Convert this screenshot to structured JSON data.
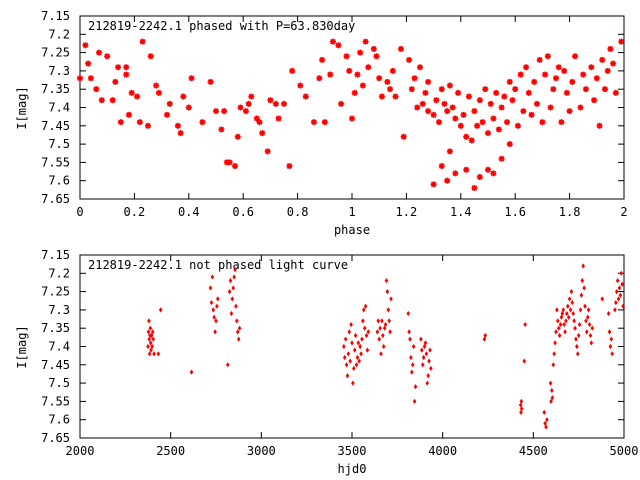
{
  "chart_data": [
    {
      "type": "scatter",
      "title": "212819-2242.1 phased with P=63.830day",
      "xlabel": "phase",
      "ylabel": "I[mag]",
      "xlim": [
        0,
        2
      ],
      "ylim": [
        7.65,
        7.15
      ],
      "y_inverted": true,
      "xticks": [
        "0",
        "0.2",
        "0.4",
        "0.6",
        "0.8",
        "1",
        "1.2",
        "1.4",
        "1.6",
        "1.8",
        "2"
      ],
      "yticks": [
        "7.15",
        "7.2",
        "7.25",
        "7.3",
        "7.35",
        "7.4",
        "7.45",
        "7.5",
        "7.55",
        "7.6",
        "7.65"
      ],
      "grid": false,
      "marker": "star",
      "color": "#ff0000",
      "points": [
        [
          0.0,
          7.32
        ],
        [
          0.02,
          7.23
        ],
        [
          0.03,
          7.28
        ],
        [
          0.04,
          7.32
        ],
        [
          0.06,
          7.35
        ],
        [
          0.07,
          7.25
        ],
        [
          0.08,
          7.38
        ],
        [
          0.1,
          7.26
        ],
        [
          0.12,
          7.38
        ],
        [
          0.13,
          7.33
        ],
        [
          0.14,
          7.29
        ],
        [
          0.15,
          7.44
        ],
        [
          0.17,
          7.29
        ],
        [
          0.17,
          7.31
        ],
        [
          0.18,
          7.42
        ],
        [
          0.19,
          7.36
        ],
        [
          0.21,
          7.37
        ],
        [
          0.22,
          7.44
        ],
        [
          0.23,
          7.22
        ],
        [
          0.25,
          7.45
        ],
        [
          0.26,
          7.26
        ],
        [
          0.28,
          7.34
        ],
        [
          0.29,
          7.36
        ],
        [
          0.32,
          7.42
        ],
        [
          0.33,
          7.39
        ],
        [
          0.36,
          7.45
        ],
        [
          0.37,
          7.47
        ],
        [
          0.38,
          7.37
        ],
        [
          0.4,
          7.4
        ],
        [
          0.41,
          7.32
        ],
        [
          0.45,
          7.44
        ],
        [
          0.48,
          7.33
        ],
        [
          0.5,
          7.41
        ],
        [
          0.52,
          7.46
        ],
        [
          0.53,
          7.41
        ],
        [
          0.54,
          7.55
        ],
        [
          0.55,
          7.55
        ],
        [
          0.57,
          7.56
        ],
        [
          0.58,
          7.48
        ],
        [
          0.59,
          7.4
        ],
        [
          0.61,
          7.41
        ],
        [
          0.62,
          7.39
        ],
        [
          0.63,
          7.37
        ],
        [
          0.65,
          7.43
        ],
        [
          0.66,
          7.44
        ],
        [
          0.67,
          7.47
        ],
        [
          0.69,
          7.52
        ],
        [
          0.7,
          7.38
        ],
        [
          0.72,
          7.39
        ],
        [
          0.73,
          7.43
        ],
        [
          0.75,
          7.39
        ],
        [
          0.77,
          7.56
        ],
        [
          0.78,
          7.3
        ],
        [
          0.81,
          7.34
        ],
        [
          0.83,
          7.37
        ],
        [
          0.86,
          7.44
        ],
        [
          0.88,
          7.32
        ],
        [
          0.89,
          7.27
        ],
        [
          0.9,
          7.44
        ],
        [
          0.92,
          7.31
        ],
        [
          0.93,
          7.22
        ],
        [
          0.95,
          7.23
        ],
        [
          0.96,
          7.39
        ],
        [
          0.98,
          7.26
        ],
        [
          0.99,
          7.3
        ],
        [
          1.0,
          7.43
        ],
        [
          1.01,
          7.36
        ],
        [
          1.02,
          7.31
        ],
        [
          1.03,
          7.25
        ],
        [
          1.04,
          7.34
        ],
        [
          1.05,
          7.22
        ],
        [
          1.06,
          7.29
        ],
        [
          1.08,
          7.24
        ],
        [
          1.09,
          7.26
        ],
        [
          1.1,
          7.32
        ],
        [
          1.11,
          7.37
        ],
        [
          1.13,
          7.33
        ],
        [
          1.14,
          7.35
        ],
        [
          1.15,
          7.3
        ],
        [
          1.16,
          7.37
        ],
        [
          1.18,
          7.24
        ],
        [
          1.19,
          7.48
        ],
        [
          1.21,
          7.27
        ],
        [
          1.22,
          7.35
        ],
        [
          1.23,
          7.32
        ],
        [
          1.24,
          7.4
        ],
        [
          1.25,
          7.29
        ],
        [
          1.27,
          7.36
        ],
        [
          1.28,
          7.33
        ],
        [
          1.3,
          7.42
        ],
        [
          1.31,
          7.38
        ],
        [
          1.32,
          7.44
        ],
        [
          1.33,
          7.35
        ],
        [
          1.34,
          7.39
        ],
        [
          1.35,
          7.41
        ],
        [
          1.36,
          7.34
        ],
        [
          1.37,
          7.4
        ],
        [
          1.38,
          7.43
        ],
        [
          1.39,
          7.36
        ],
        [
          1.4,
          7.45
        ],
        [
          1.41,
          7.42
        ],
        [
          1.42,
          7.48
        ],
        [
          1.43,
          7.37
        ],
        [
          1.44,
          7.49
        ],
        [
          1.45,
          7.41
        ],
        [
          1.46,
          7.45
        ],
        [
          1.47,
          7.38
        ],
        [
          1.48,
          7.44
        ],
        [
          1.49,
          7.35
        ],
        [
          1.5,
          7.47
        ],
        [
          1.51,
          7.39
        ],
        [
          1.52,
          7.43
        ],
        [
          1.53,
          7.36
        ],
        [
          1.54,
          7.46
        ],
        [
          1.55,
          7.4
        ],
        [
          1.56,
          7.37
        ],
        [
          1.57,
          7.44
        ],
        [
          1.58,
          7.33
        ],
        [
          1.59,
          7.38
        ],
        [
          1.6,
          7.35
        ],
        [
          1.61,
          7.45
        ],
        [
          1.62,
          7.31
        ],
        [
          1.63,
          7.41
        ],
        [
          1.64,
          7.29
        ],
        [
          1.65,
          7.36
        ],
        [
          1.66,
          7.42
        ],
        [
          1.67,
          7.33
        ],
        [
          1.68,
          7.39
        ],
        [
          1.69,
          7.27
        ],
        [
          1.7,
          7.44
        ],
        [
          1.71,
          7.31
        ],
        [
          1.72,
          7.26
        ],
        [
          1.73,
          7.4
        ],
        [
          1.74,
          7.35
        ],
        [
          1.75,
          7.32
        ],
        [
          1.76,
          7.29
        ],
        [
          1.77,
          7.44
        ],
        [
          1.78,
          7.3
        ],
        [
          1.79,
          7.36
        ],
        [
          1.8,
          7.41
        ],
        [
          1.81,
          7.33
        ],
        [
          1.82,
          7.26
        ],
        [
          1.84,
          7.4
        ],
        [
          1.85,
          7.31
        ],
        [
          1.86,
          7.35
        ],
        [
          1.88,
          7.29
        ],
        [
          1.89,
          7.38
        ],
        [
          1.9,
          7.32
        ],
        [
          1.91,
          7.45
        ],
        [
          1.92,
          7.27
        ],
        [
          1.93,
          7.35
        ],
        [
          1.94,
          7.3
        ],
        [
          1.95,
          7.24
        ],
        [
          1.96,
          7.28
        ],
        [
          1.97,
          7.36
        ],
        [
          1.99,
          7.22
        ],
        [
          1.3,
          7.61
        ],
        [
          1.33,
          7.56
        ],
        [
          1.35,
          7.6
        ],
        [
          1.38,
          7.58
        ],
        [
          1.42,
          7.57
        ],
        [
          1.45,
          7.62
        ],
        [
          1.47,
          7.59
        ],
        [
          1.5,
          7.57
        ],
        [
          1.52,
          7.58
        ],
        [
          1.55,
          7.54
        ],
        [
          1.58,
          7.5
        ],
        [
          1.36,
          7.52
        ],
        [
          1.28,
          7.41
        ],
        [
          1.26,
          7.39
        ]
      ]
    },
    {
      "type": "scatter",
      "title": "212819-2242.1 not phased light curve",
      "xlabel": "hjd0",
      "ylabel": "I[mag]",
      "xlim": [
        2000,
        5000
      ],
      "ylim": [
        7.65,
        7.15
      ],
      "y_inverted": true,
      "xticks": [
        "2000",
        "2500",
        "3000",
        "3500",
        "4000",
        "4500",
        "5000"
      ],
      "yticks": [
        "7.15",
        "7.2",
        "7.25",
        "7.3",
        "7.35",
        "7.4",
        "7.45",
        "7.5",
        "7.55",
        "7.6",
        "7.65"
      ],
      "grid": false,
      "marker": "diamond",
      "color": "#ff0000",
      "points": [
        [
          2375,
          7.4
        ],
        [
          2378,
          7.36
        ],
        [
          2380,
          7.33
        ],
        [
          2382,
          7.38
        ],
        [
          2384,
          7.42
        ],
        [
          2386,
          7.37
        ],
        [
          2388,
          7.35
        ],
        [
          2390,
          7.39
        ],
        [
          2392,
          7.41
        ],
        [
          2395,
          7.37
        ],
        [
          2398,
          7.4
        ],
        [
          2401,
          7.36
        ],
        [
          2404,
          7.38
        ],
        [
          2408,
          7.42
        ],
        [
          2432,
          7.42
        ],
        [
          2445,
          7.3
        ],
        [
          2615,
          7.47
        ],
        [
          2720,
          7.24
        ],
        [
          2725,
          7.28
        ],
        [
          2730,
          7.21
        ],
        [
          2735,
          7.3
        ],
        [
          2740,
          7.32
        ],
        [
          2745,
          7.36
        ],
        [
          2750,
          7.33
        ],
        [
          2755,
          7.29
        ],
        [
          2760,
          7.27
        ],
        [
          2815,
          7.45
        ],
        [
          2825,
          7.25
        ],
        [
          2830,
          7.22
        ],
        [
          2835,
          7.31
        ],
        [
          2840,
          7.27
        ],
        [
          2845,
          7.24
        ],
        [
          2850,
          7.21
        ],
        [
          2855,
          7.19
        ],
        [
          2860,
          7.29
        ],
        [
          2865,
          7.33
        ],
        [
          2870,
          7.36
        ],
        [
          2875,
          7.38
        ],
        [
          2880,
          7.35
        ],
        [
          3455,
          7.4
        ],
        [
          3460,
          7.43
        ],
        [
          3465,
          7.38
        ],
        [
          3470,
          7.45
        ],
        [
          3475,
          7.48
        ],
        [
          3480,
          7.42
        ],
        [
          3485,
          7.36
        ],
        [
          3490,
          7.44
        ],
        [
          3495,
          7.34
        ],
        [
          3500,
          7.39
        ],
        [
          3505,
          7.5
        ],
        [
          3510,
          7.46
        ],
        [
          3515,
          7.41
        ],
        [
          3520,
          7.37
        ],
        [
          3525,
          7.45
        ],
        [
          3530,
          7.43
        ],
        [
          3535,
          7.39
        ],
        [
          3540,
          7.44
        ],
        [
          3545,
          7.4
        ],
        [
          3550,
          7.42
        ],
        [
          3555,
          7.38
        ],
        [
          3560,
          7.33
        ],
        [
          3565,
          7.3
        ],
        [
          3570,
          7.35
        ],
        [
          3575,
          7.29
        ],
        [
          3580,
          7.37
        ],
        [
          3585,
          7.41
        ],
        [
          3590,
          7.36
        ],
        [
          3640,
          7.36
        ],
        [
          3645,
          7.33
        ],
        [
          3650,
          7.38
        ],
        [
          3655,
          7.35
        ],
        [
          3660,
          7.42
        ],
        [
          3665,
          7.33
        ],
        [
          3670,
          7.37
        ],
        [
          3675,
          7.4
        ],
        [
          3680,
          7.35
        ],
        [
          3685,
          7.34
        ],
        [
          3690,
          7.22
        ],
        [
          3695,
          7.25
        ],
        [
          3700,
          7.3
        ],
        [
          3705,
          7.33
        ],
        [
          3710,
          7.36
        ],
        [
          3715,
          7.27
        ],
        [
          3810,
          7.31
        ],
        [
          3815,
          7.36
        ],
        [
          3820,
          7.38
        ],
        [
          3825,
          7.43
        ],
        [
          3830,
          7.47
        ],
        [
          3835,
          7.45
        ],
        [
          3840,
          7.4
        ],
        [
          3845,
          7.55
        ],
        [
          3850,
          7.51
        ],
        [
          3880,
          7.38
        ],
        [
          3885,
          7.41
        ],
        [
          3890,
          7.45
        ],
        [
          3895,
          7.43
        ],
        [
          3900,
          7.4
        ],
        [
          3905,
          7.39
        ],
        [
          3910,
          7.42
        ],
        [
          3915,
          7.5
        ],
        [
          3920,
          7.48
        ],
        [
          3925,
          7.44
        ],
        [
          3930,
          7.41
        ],
        [
          3935,
          7.46
        ],
        [
          4230,
          7.38
        ],
        [
          4235,
          7.37
        ],
        [
          4430,
          7.56
        ],
        [
          4432,
          7.58
        ],
        [
          4434,
          7.55
        ],
        [
          4436,
          7.57
        ],
        [
          4450,
          7.44
        ],
        [
          4455,
          7.34
        ],
        [
          4560,
          7.58
        ],
        [
          4565,
          7.61
        ],
        [
          4570,
          7.62
        ],
        [
          4575,
          7.6
        ],
        [
          4595,
          7.5
        ],
        [
          4598,
          7.55
        ],
        [
          4602,
          7.52
        ],
        [
          4605,
          7.54
        ],
        [
          4610,
          7.45
        ],
        [
          4615,
          7.42
        ],
        [
          4620,
          7.39
        ],
        [
          4625,
          7.36
        ],
        [
          4630,
          7.3
        ],
        [
          4635,
          7.33
        ],
        [
          4640,
          7.35
        ],
        [
          4645,
          7.37
        ],
        [
          4650,
          7.34
        ],
        [
          4655,
          7.32
        ],
        [
          4660,
          7.31
        ],
        [
          4665,
          7.3
        ],
        [
          4670,
          7.34
        ],
        [
          4675,
          7.36
        ],
        [
          4680,
          7.33
        ],
        [
          4685,
          7.31
        ],
        [
          4690,
          7.29
        ],
        [
          4695,
          7.32
        ],
        [
          4700,
          7.27
        ],
        [
          4705,
          7.3
        ],
        [
          4710,
          7.25
        ],
        [
          4715,
          7.28
        ],
        [
          4720,
          7.31
        ],
        [
          4725,
          7.33
        ],
        [
          4730,
          7.35
        ],
        [
          4735,
          7.38
        ],
        [
          4740,
          7.4
        ],
        [
          4745,
          7.42
        ],
        [
          4750,
          7.37
        ],
        [
          4755,
          7.34
        ],
        [
          4760,
          7.3
        ],
        [
          4765,
          7.26
        ],
        [
          4770,
          7.22
        ],
        [
          4775,
          7.18
        ],
        [
          4780,
          7.24
        ],
        [
          4785,
          7.29
        ],
        [
          4790,
          7.33
        ],
        [
          4795,
          7.36
        ],
        [
          4800,
          7.32
        ],
        [
          4805,
          7.3
        ],
        [
          4810,
          7.34
        ],
        [
          4815,
          7.37
        ],
        [
          4820,
          7.39
        ],
        [
          4825,
          7.35
        ],
        [
          4915,
          7.31
        ],
        [
          4920,
          7.36
        ],
        [
          4925,
          7.4
        ],
        [
          4930,
          7.38
        ],
        [
          4935,
          7.42
        ],
        [
          4950,
          7.3
        ],
        [
          4955,
          7.28
        ],
        [
          4960,
          7.25
        ],
        [
          4965,
          7.22
        ],
        [
          4970,
          7.27
        ],
        [
          4975,
          7.24
        ],
        [
          4980,
          7.26
        ],
        [
          4985,
          7.2
        ],
        [
          4990,
          7.23
        ],
        [
          4995,
          7.29
        ],
        [
          4880,
          7.27
        ]
      ]
    }
  ]
}
